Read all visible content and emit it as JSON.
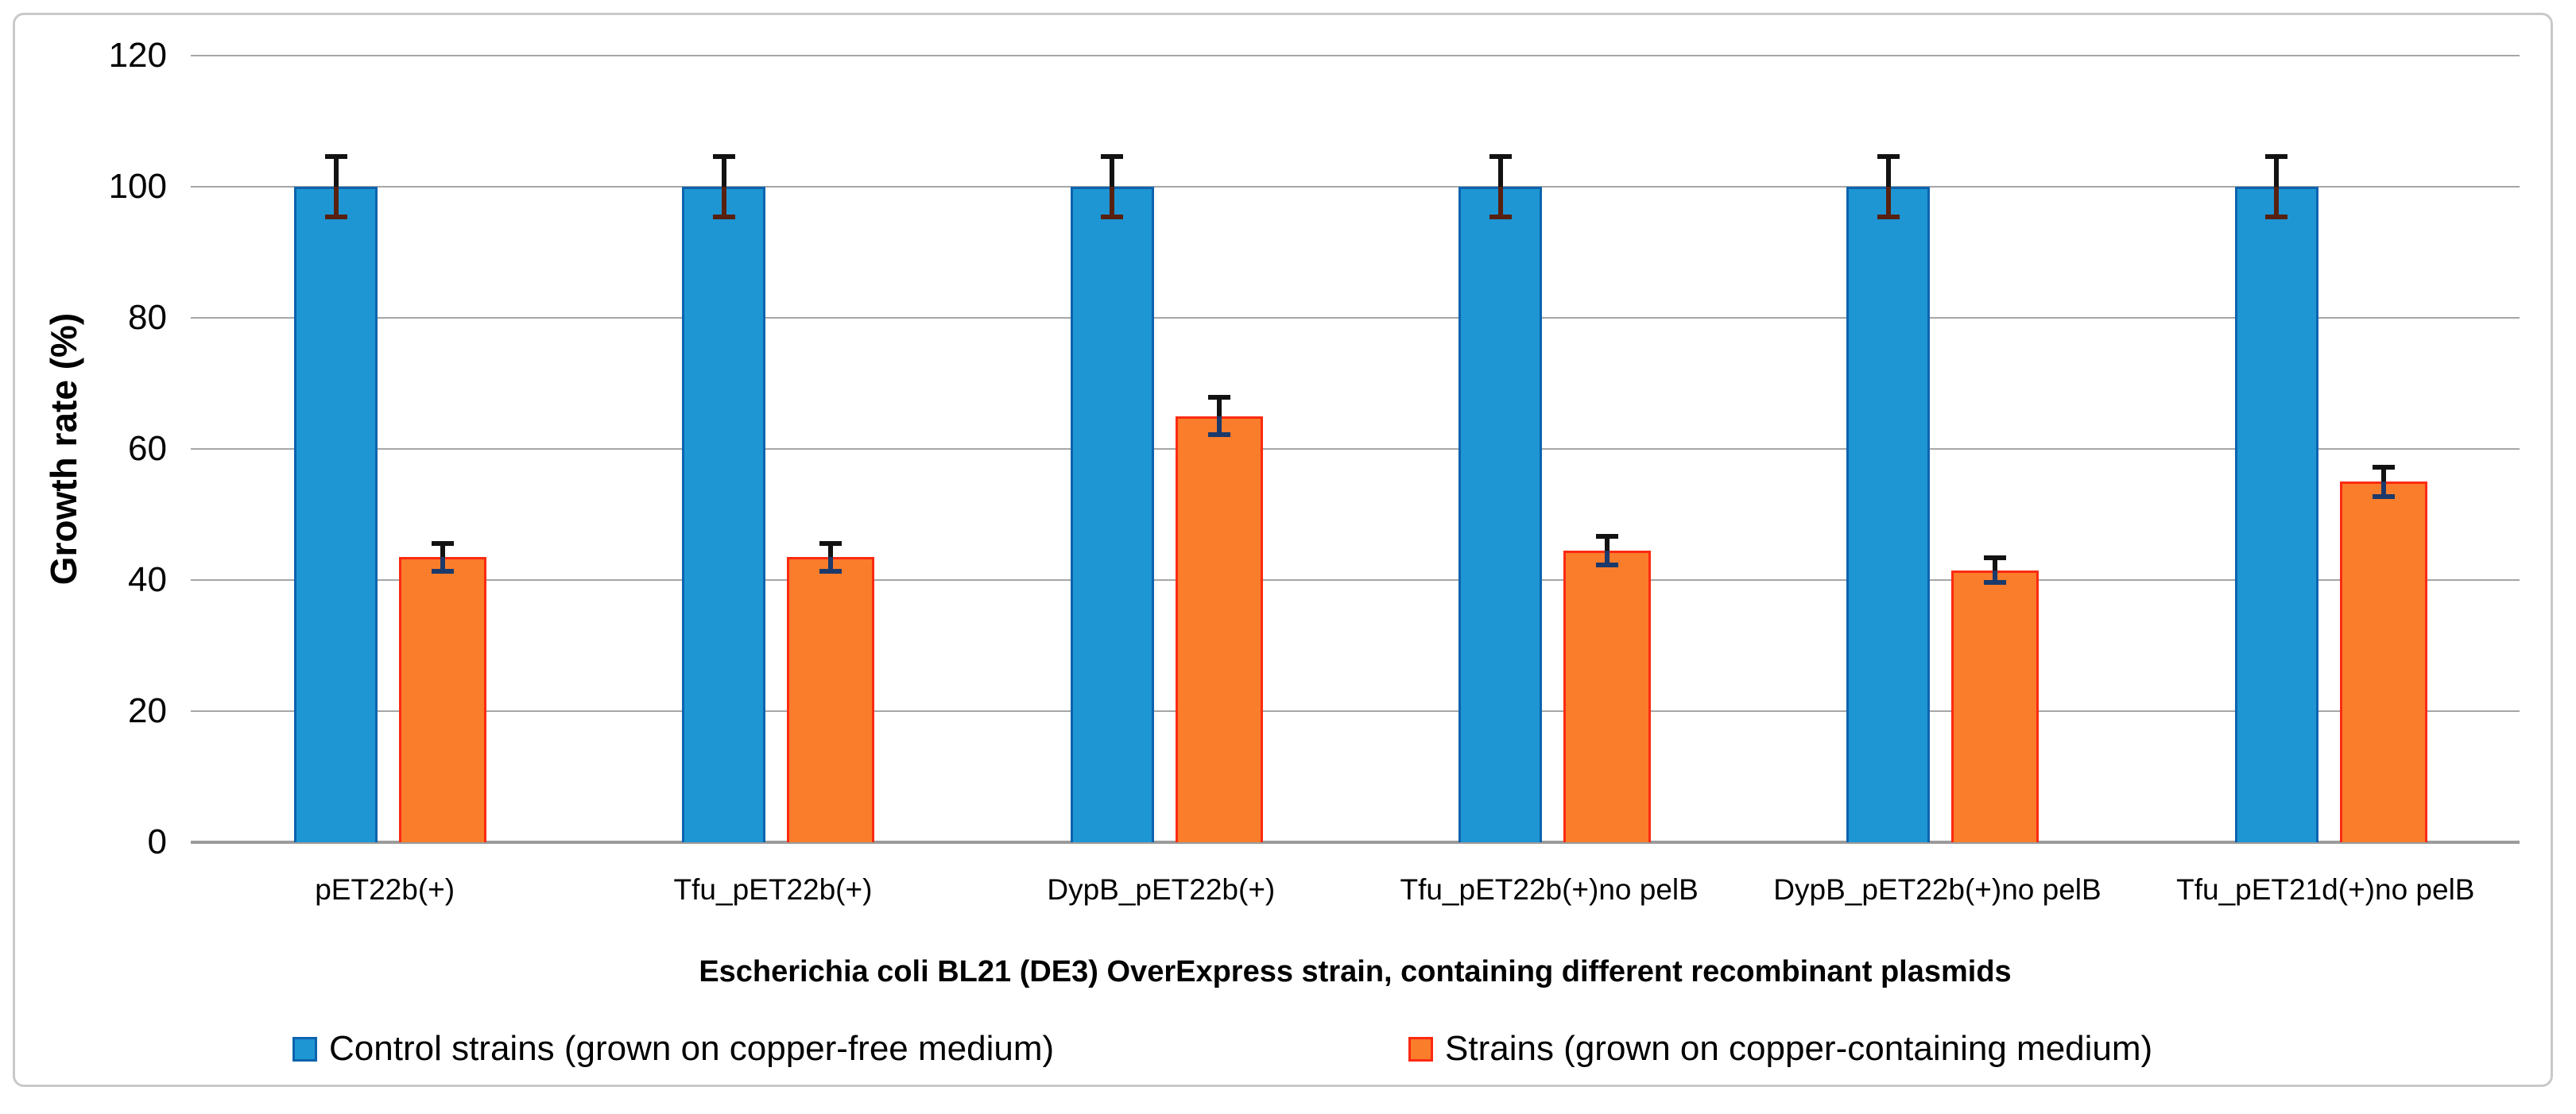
{
  "figure": {
    "background": "#ffffff",
    "frame_border_color": "#c9c9c9"
  },
  "chart_data": {
    "type": "bar",
    "title": "",
    "categories": [
      "pET22b(+)",
      "Tfu_pET22b(+)",
      "DypB_pET22b(+)",
      "Tfu_pET22b(+)no pelB",
      "DypB_pET22b(+)no pelB",
      "Tfu_pET21d(+)no pelB"
    ],
    "series": [
      {
        "name": "Control strains (grown on copper-free medium)",
        "values": [
          100,
          100,
          100,
          100,
          100,
          100
        ],
        "errors": [
          5,
          5,
          5,
          5,
          5,
          5
        ],
        "fill": "#1E96D4",
        "border": "#0D63AE",
        "error_lower_color": "#58200F"
      },
      {
        "name": "Strains (grown on copper-containing medium)",
        "values": [
          43.5,
          43.5,
          65,
          44.5,
          41.5,
          55
        ],
        "errors": [
          2.5,
          2.5,
          3.2,
          2.5,
          2.2,
          2.6
        ],
        "fill": "#F97D2B",
        "border": "#FB2A12",
        "error_lower_color": "#1B3A6B"
      }
    ],
    "xlabel": "Escherichia coli BL21 (DE3) OverExpress strain, containing different recombinant plasmids",
    "ylabel": "Growth rate (%)",
    "ylim": [
      0,
      120
    ],
    "yticks": [
      0,
      20,
      40,
      60,
      80,
      100,
      120
    ],
    "grid": true,
    "legend_position": "bottom",
    "error_bar_color": "#121212",
    "gridline_color": "#a6a6a6",
    "axisline_color": "#9b9b9b"
  }
}
